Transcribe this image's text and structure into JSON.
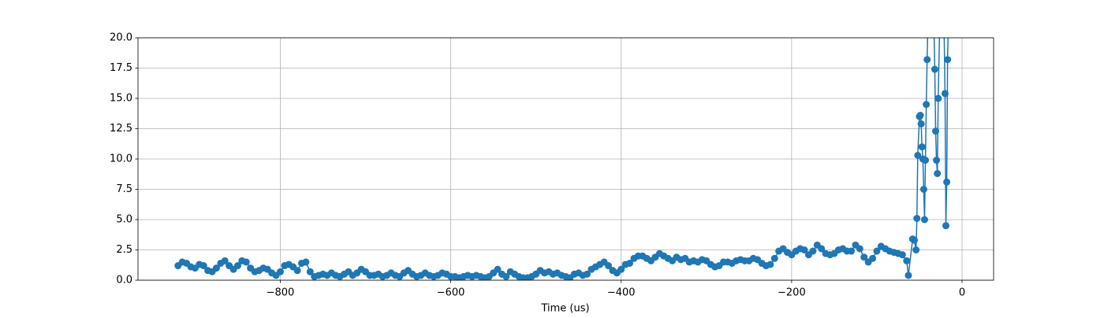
{
  "chart_data": {
    "type": "line",
    "xlabel": "Time (us)",
    "color": "#1f77b4",
    "grid": true,
    "markers": true,
    "xlim": [
      -967,
      37
    ],
    "ylim": [
      0,
      20
    ],
    "xticks": [
      {
        "value": -800,
        "label": "−800"
      },
      {
        "value": -600,
        "label": "−600"
      },
      {
        "value": -400,
        "label": "−400"
      },
      {
        "value": -200,
        "label": "−200"
      },
      0
    ],
    "yticks": [
      {
        "value": 0,
        "label": "0.0"
      },
      2.5,
      {
        "value": 5,
        "label": "5.0"
      },
      7.5,
      {
        "value": 10,
        "label": "10.0"
      },
      12.5,
      {
        "value": 15,
        "label": "15.0"
      },
      17.5,
      {
        "value": 20,
        "label": "20.0"
      }
    ],
    "x": [
      -920,
      -915,
      -910,
      -905,
      -900,
      -895,
      -890,
      -885,
      -880,
      -875,
      -870,
      -865,
      -860,
      -855,
      -850,
      -845,
      -840,
      -835,
      -830,
      -825,
      -820,
      -815,
      -810,
      -805,
      -800,
      -795,
      -790,
      -785,
      -780,
      -775,
      -770,
      -765,
      -760,
      -755,
      -750,
      -745,
      -740,
      -735,
      -730,
      -725,
      -720,
      -715,
      -710,
      -705,
      -700,
      -695,
      -690,
      -685,
      -680,
      -675,
      -670,
      -665,
      -660,
      -655,
      -650,
      -645,
      -640,
      -635,
      -630,
      -625,
      -620,
      -615,
      -610,
      -605,
      -600,
      -595,
      -590,
      -585,
      -580,
      -575,
      -570,
      -565,
      -560,
      -555,
      -550,
      -545,
      -540,
      -535,
      -530,
      -525,
      -520,
      -515,
      -510,
      -505,
      -500,
      -495,
      -490,
      -485,
      -480,
      -475,
      -470,
      -465,
      -460,
      -455,
      -450,
      -445,
      -440,
      -435,
      -430,
      -425,
      -420,
      -415,
      -410,
      -405,
      -400,
      -395,
      -390,
      -385,
      -380,
      -375,
      -370,
      -365,
      -360,
      -355,
      -350,
      -345,
      -340,
      -335,
      -330,
      -325,
      -320,
      -315,
      -310,
      -305,
      -300,
      -295,
      -290,
      -285,
      -280,
      -275,
      -270,
      -265,
      -260,
      -255,
      -250,
      -245,
      -240,
      -235,
      -230,
      -225,
      -220,
      -215,
      -210,
      -205,
      -200,
      -195,
      -190,
      -185,
      -180,
      -175,
      -170,
      -165,
      -160,
      -155,
      -150,
      -145,
      -140,
      -135,
      -130,
      -125,
      -120,
      -115,
      -110,
      -105,
      -100,
      -95,
      -90,
      -85,
      -80,
      -75,
      -70,
      -65,
      -63,
      -58,
      -56,
      -54,
      -53,
      -52,
      -50,
      -49,
      -48,
      -47,
      -46,
      -45,
      -44,
      -43,
      -42,
      -41,
      -39,
      -35,
      -32,
      -31,
      -30,
      -29,
      -28,
      -26,
      -22,
      -20,
      -19,
      -18,
      -17,
      -15
    ],
    "values": [
      1.2,
      1.5,
      1.4,
      1.1,
      1.0,
      1.3,
      1.2,
      0.8,
      0.7,
      1.0,
      1.4,
      1.6,
      1.2,
      0.9,
      1.2,
      1.6,
      1.5,
      1.0,
      0.7,
      0.8,
      1.0,
      0.9,
      0.6,
      0.4,
      0.7,
      1.2,
      1.3,
      1.1,
      0.8,
      1.4,
      1.5,
      0.7,
      0.3,
      0.4,
      0.5,
      0.4,
      0.6,
      0.4,
      0.3,
      0.5,
      0.7,
      0.4,
      0.6,
      0.9,
      0.7,
      0.4,
      0.4,
      0.5,
      0.3,
      0.4,
      0.6,
      0.4,
      0.3,
      0.6,
      0.8,
      0.5,
      0.3,
      0.4,
      0.6,
      0.4,
      0.3,
      0.4,
      0.6,
      0.5,
      0.3,
      0.3,
      0.2,
      0.3,
      0.4,
      0.3,
      0.4,
      0.3,
      0.2,
      0.3,
      0.6,
      0.9,
      0.5,
      0.3,
      0.7,
      0.5,
      0.3,
      0.2,
      0.2,
      0.3,
      0.5,
      0.8,
      0.6,
      0.7,
      0.5,
      0.6,
      0.4,
      0.3,
      0.2,
      0.5,
      0.6,
      0.4,
      0.5,
      0.9,
      1.1,
      1.3,
      1.5,
      1.2,
      0.8,
      0.6,
      0.9,
      1.3,
      1.4,
      1.8,
      2.0,
      2.0,
      1.8,
      1.6,
      1.9,
      2.2,
      2.0,
      1.8,
      1.6,
      1.9,
      1.7,
      1.8,
      1.5,
      1.6,
      1.5,
      1.7,
      1.6,
      1.3,
      1.1,
      1.2,
      1.5,
      1.5,
      1.4,
      1.6,
      1.7,
      1.6,
      1.6,
      1.8,
      1.7,
      1.4,
      1.2,
      1.3,
      1.8,
      2.4,
      2.6,
      2.3,
      2.1,
      2.4,
      2.6,
      2.5,
      2.1,
      2.4,
      2.9,
      2.6,
      2.2,
      2.1,
      2.2,
      2.5,
      2.6,
      2.4,
      2.4,
      2.9,
      2.6,
      1.9,
      1.5,
      1.8,
      2.4,
      2.8,
      2.6,
      2.4,
      2.3,
      2.2,
      2.1,
      1.6,
      0.4,
      3.4,
      3.3,
      2.5,
      5.1,
      10.3,
      13.5,
      13.6,
      12.9,
      11.0,
      10.0,
      7.5,
      5.0,
      9.9,
      14.5,
      18.2,
      25,
      28,
      17.4,
      12.3,
      9.9,
      8.8,
      15.0,
      22,
      25,
      15.4,
      4.5,
      8.1,
      18.2,
      25
    ]
  }
}
